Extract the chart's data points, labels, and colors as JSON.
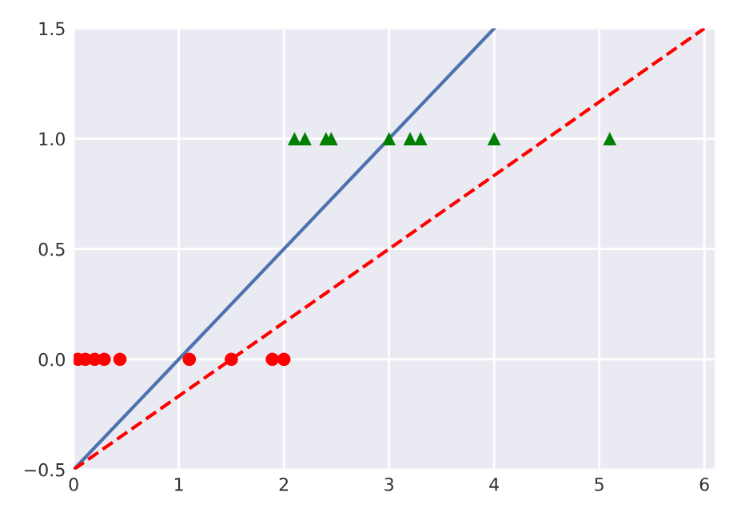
{
  "chart_data": {
    "type": "scatter",
    "xlim": [
      0,
      6.1
    ],
    "ylim": [
      -0.5,
      1.5
    ],
    "xticks": [
      0,
      1,
      2,
      3,
      4,
      5,
      6
    ],
    "yticks": [
      {
        "value": -0.5,
        "label": "−0.5"
      },
      {
        "value": 0,
        "label": "0.0"
      },
      {
        "value": 0.5,
        "label": "0.5"
      },
      {
        "value": 1,
        "label": "1.0"
      },
      {
        "value": 1.5,
        "label": "1.5"
      }
    ],
    "grid": true,
    "series": [
      {
        "marker": "circle",
        "color": "#ff0000",
        "x": [
          0.04,
          0.11,
          0.2,
          0.29,
          0.44,
          1.1,
          1.5,
          1.89,
          2.0
        ],
        "values": [
          0,
          0,
          0,
          0,
          0,
          0,
          0,
          0,
          0
        ]
      },
      {
        "marker": "triangle",
        "color": "#008000",
        "x": [
          2.1,
          2.2,
          2.4,
          2.45,
          3.0,
          3.2,
          3.3,
          4.0,
          5.1
        ],
        "values": [
          1,
          1,
          1,
          1,
          1,
          1,
          1,
          1,
          1
        ]
      },
      {
        "type": "line",
        "line_style": "solid",
        "color": "#4c72b0",
        "x": [
          0,
          4
        ],
        "values": [
          -0.5,
          1.5
        ]
      },
      {
        "type": "line",
        "line_style": "dashed",
        "color": "#ff0000",
        "x": [
          0,
          6
        ],
        "values": [
          -0.5,
          1.5
        ]
      }
    ]
  }
}
